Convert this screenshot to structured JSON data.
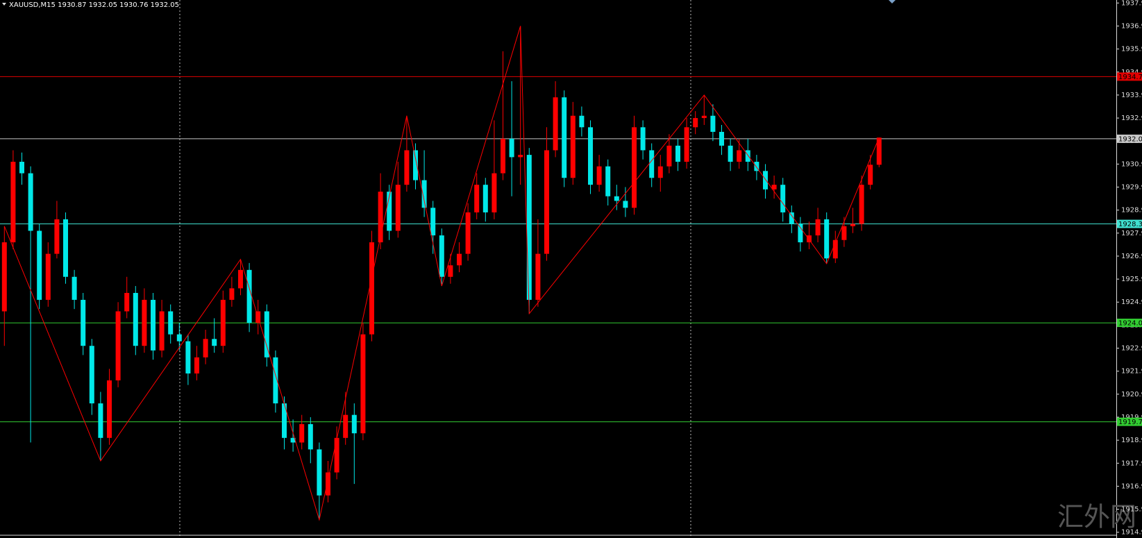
{
  "chart_data": {
    "type": "candlestick",
    "title": "XAUUSD,M15  1930.87 1932.05 1930.76 1932.05",
    "watermark": "汇外网",
    "up_color": "#ff0000",
    "down_color": "#00e8e8",
    "ylim": [
      1914.65,
      1938.03
    ],
    "yticks": [
      1914.9,
      1915.9,
      1916.9,
      1917.9,
      1918.9,
      1919.9,
      1920.9,
      1921.9,
      1922.9,
      1923.9,
      1924.9,
      1925.9,
      1926.9,
      1927.9,
      1928.9,
      1929.9,
      1930.9,
      1931.9,
      1932.9,
      1933.9,
      1934.9,
      1935.9,
      1936.9,
      1937.9
    ],
    "open": [
      1924.5,
      1927.5,
      1931.0,
      1930.5,
      1928.0,
      1925.0,
      1927.0,
      1928.5,
      1926.0,
      1925.0,
      1923.0,
      1920.5,
      1919.0,
      1921.5,
      1924.5,
      1925.3,
      1923.0,
      1925.0,
      1922.8,
      1924.5,
      1923.5,
      1923.2,
      1921.8,
      1922.5,
      1923.3,
      1923.0,
      1925.0,
      1925.5,
      1926.3,
      1924.0,
      1924.5,
      1922.5,
      1920.5,
      1919.0,
      1918.8,
      1919.6,
      1918.5,
      1916.5,
      1917.5,
      1919.0,
      1920.0,
      1919.2,
      1923.5,
      1927.5,
      1929.7,
      1928.0,
      1930.0,
      1931.5,
      1930.2,
      1929.0,
      1927.8,
      1926.0,
      1926.5,
      1927.0,
      1928.8,
      1930.0,
      1928.8,
      1930.5,
      1932.0,
      1931.2,
      1931.3,
      1925.0,
      1927.0,
      1931.5,
      1933.8,
      1930.3,
      1933.0,
      1932.5,
      1930.0,
      1930.8,
      1929.5,
      1929.3,
      1929.0,
      1932.5,
      1931.5,
      1930.3,
      1930.8,
      1931.7,
      1931.0,
      1932.5,
      1932.9,
      1933.0,
      1932.3,
      1931.7,
      1931.0,
      1931.5,
      1931.0,
      1930.6,
      1929.8,
      1930.0,
      1928.8,
      1928.3,
      1927.5,
      1927.8,
      1928.5,
      1926.8,
      1927.6,
      1928.2,
      1928.3,
      1930.0,
      1930.87
    ],
    "high": [
      1928.2,
      1931.5,
      1931.4,
      1930.8,
      1928.3,
      1927.5,
      1929.3,
      1928.8,
      1926.3,
      1925.3,
      1923.3,
      1921.0,
      1922.0,
      1924.9,
      1926.0,
      1925.6,
      1925.5,
      1925.3,
      1925.0,
      1924.8,
      1924.0,
      1923.5,
      1923.0,
      1923.7,
      1924.2,
      1925.4,
      1926.0,
      1926.76,
      1926.6,
      1925.0,
      1924.8,
      1922.8,
      1920.8,
      1919.8,
      1920.0,
      1919.9,
      1918.8,
      1918.0,
      1919.5,
      1921.0,
      1920.5,
      1924.0,
      1928.0,
      1930.5,
      1930.0,
      1931.0,
      1933.0,
      1931.8,
      1931.5,
      1929.3,
      1928.1,
      1927.0,
      1927.5,
      1929.2,
      1930.5,
      1930.3,
      1932.8,
      1935.8,
      1934.5,
      1936.9,
      1931.6,
      1928.5,
      1932.5,
      1934.5,
      1934.1,
      1933.6,
      1933.4,
      1932.8,
      1931.3,
      1931.1,
      1930.0,
      1929.9,
      1933.0,
      1932.8,
      1931.8,
      1931.3,
      1932.2,
      1932.0,
      1932.9,
      1933.2,
      1933.9,
      1933.5,
      1932.6,
      1932.0,
      1932.0,
      1932.0,
      1931.3,
      1930.9,
      1930.4,
      1930.3,
      1929.1,
      1928.6,
      1928.4,
      1929.0,
      1928.8,
      1928.0,
      1928.6,
      1929.0,
      1930.4,
      1931.3,
      1932.05
    ],
    "low": [
      1923.0,
      1927.2,
      1930.0,
      1918.8,
      1924.6,
      1924.7,
      1926.8,
      1925.7,
      1924.6,
      1922.6,
      1920.0,
      1918.0,
      1918.7,
      1921.2,
      1924.2,
      1922.6,
      1922.7,
      1922.4,
      1922.5,
      1923.1,
      1922.8,
      1921.3,
      1921.5,
      1922.2,
      1922.7,
      1922.7,
      1924.7,
      1925.2,
      1923.6,
      1923.5,
      1922.1,
      1920.1,
      1918.5,
      1918.4,
      1918.5,
      1917.9,
      1915.44,
      1916.2,
      1917.2,
      1918.7,
      1917.0,
      1918.9,
      1923.2,
      1927.2,
      1927.6,
      1927.7,
      1929.7,
      1929.8,
      1928.6,
      1927.0,
      1925.6,
      1925.7,
      1926.2,
      1926.7,
      1928.5,
      1928.4,
      1928.5,
      1930.2,
      1929.5,
      1930.0,
      1924.4,
      1924.7,
      1926.7,
      1931.2,
      1929.9,
      1930.0,
      1932.1,
      1929.6,
      1929.7,
      1929.1,
      1928.9,
      1928.6,
      1928.7,
      1931.1,
      1929.9,
      1929.7,
      1930.5,
      1930.6,
      1930.7,
      1932.2,
      1932.6,
      1931.9,
      1931.3,
      1930.6,
      1930.7,
      1930.6,
      1930.2,
      1929.4,
      1929.4,
      1928.4,
      1927.9,
      1927.1,
      1927.2,
      1927.5,
      1926.57,
      1926.6,
      1927.3,
      1927.9,
      1928.0,
      1929.8,
      1930.76
    ],
    "close": [
      1927.5,
      1931.0,
      1930.5,
      1928.0,
      1925.0,
      1927.0,
      1928.5,
      1926.0,
      1925.0,
      1923.0,
      1920.5,
      1919.0,
      1921.5,
      1924.5,
      1925.3,
      1923.0,
      1925.0,
      1922.8,
      1924.5,
      1923.5,
      1923.2,
      1921.8,
      1922.5,
      1923.3,
      1923.0,
      1925.0,
      1925.5,
      1926.3,
      1924.0,
      1924.5,
      1922.5,
      1920.5,
      1919.0,
      1918.8,
      1919.6,
      1918.5,
      1916.5,
      1917.5,
      1919.0,
      1920.0,
      1919.2,
      1923.5,
      1927.5,
      1929.7,
      1928.0,
      1930.0,
      1931.5,
      1930.2,
      1929.0,
      1927.8,
      1926.0,
      1926.5,
      1927.0,
      1928.8,
      1930.0,
      1928.8,
      1930.5,
      1932.0,
      1931.2,
      1931.3,
      1925.0,
      1927.0,
      1931.5,
      1933.8,
      1930.3,
      1933.0,
      1932.5,
      1930.0,
      1930.8,
      1929.5,
      1929.3,
      1929.0,
      1932.5,
      1931.5,
      1930.3,
      1930.8,
      1931.7,
      1931.0,
      1932.5,
      1932.9,
      1933.0,
      1932.3,
      1931.7,
      1931.0,
      1931.5,
      1931.0,
      1930.6,
      1929.8,
      1930.0,
      1928.8,
      1928.3,
      1927.5,
      1927.8,
      1928.5,
      1926.8,
      1927.6,
      1928.2,
      1928.3,
      1930.0,
      1930.87,
      1932.05
    ],
    "zigzag": {
      "color": "#ff0000",
      "x": [
        0,
        11,
        27,
        36,
        46,
        50,
        59,
        60,
        80,
        94,
        100
      ],
      "values": [
        1928.2,
        1918.0,
        1926.76,
        1915.44,
        1933.0,
        1925.6,
        1936.9,
        1924.4,
        1933.9,
        1926.57,
        1932.05
      ]
    },
    "levels": [
      {
        "value": 1934.7,
        "color": "#e00000",
        "text_color": "#000000"
      },
      {
        "value": 1932.0,
        "label": "1932.0",
        "color": "#c8c8c8",
        "text_color": "#000000"
      },
      {
        "value": 1928.3,
        "label": "1928.3",
        "color": "#40e0d0",
        "text_color": "#000000"
      },
      {
        "value": 1924.0,
        "label": "1924.0",
        "color": "#32cd32",
        "text_color": "#000000"
      },
      {
        "value": 1919.7,
        "color": "#32cd32",
        "text_color": "#000000"
      }
    ]
  }
}
